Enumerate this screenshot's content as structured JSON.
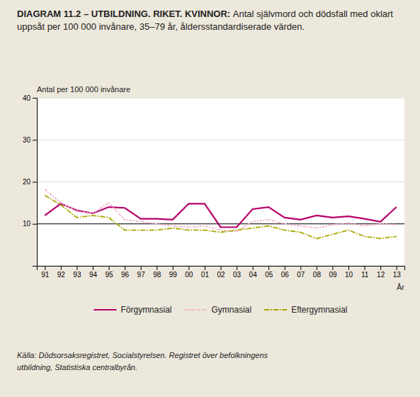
{
  "chart_data": {
    "type": "line",
    "title": "DIAGRAM 11.2 – UTBILDNING. RIKET. KVINNOR:",
    "subtitle": "Antal självmord och dödsfall med oklart uppsåt per 100 000 invånare, 35–79 år, åldersstandardiserade värden.",
    "x_label": "År",
    "y_label": "Antal per 100 000 invånare",
    "categories": [
      "91",
      "92",
      "93",
      "94",
      "95",
      "96",
      "97",
      "98",
      "99",
      "00",
      "01",
      "02",
      "03",
      "04",
      "05",
      "06",
      "07",
      "08",
      "09",
      "10",
      "11",
      "12",
      "13"
    ],
    "series": [
      {
        "name": "Förgymnasial",
        "color": "#b5006b",
        "line_style": "solid",
        "values": [
          12.0,
          14.8,
          13.2,
          12.5,
          14.0,
          13.8,
          11.2,
          11.2,
          11.0,
          14.8,
          14.8,
          9.2,
          9.2,
          13.5,
          14.0,
          11.5,
          11.0,
          12.0,
          11.5,
          11.8,
          11.2,
          10.5,
          14.0
        ]
      },
      {
        "name": "Gymnasial",
        "color": "#f2aec8",
        "line_style": "dashdot",
        "values": [
          18.2,
          15.0,
          13.0,
          12.5,
          15.0,
          11.0,
          10.5,
          10.0,
          9.5,
          9.2,
          9.5,
          8.5,
          8.2,
          10.5,
          11.0,
          10.0,
          9.5,
          9.0,
          9.8,
          10.2,
          9.5,
          10.0,
          9.8
        ]
      },
      {
        "name": "Eftergymnasial",
        "color": "#a8a800",
        "line_style": "longdashdot",
        "values": [
          16.8,
          14.5,
          11.5,
          12.0,
          11.5,
          8.5,
          8.5,
          8.5,
          9.0,
          8.5,
          8.5,
          8.0,
          8.5,
          9.0,
          9.5,
          8.5,
          8.0,
          6.5,
          7.5,
          8.5,
          7.0,
          6.5,
          7.0
        ]
      }
    ],
    "reference_line": {
      "value": 10,
      "color": "#000000"
    },
    "ylim": [
      0,
      40
    ],
    "yticks": [
      {
        "value": 0,
        "label": null
      },
      10,
      20,
      30,
      40
    ],
    "grid": true,
    "legend": "bottom",
    "annotations": [
      "Källa: Dödsorsaksregistret, Socialstyrelsen. Registret över befolkningens",
      "utbildning, Statistiska centralbyrån."
    ]
  }
}
